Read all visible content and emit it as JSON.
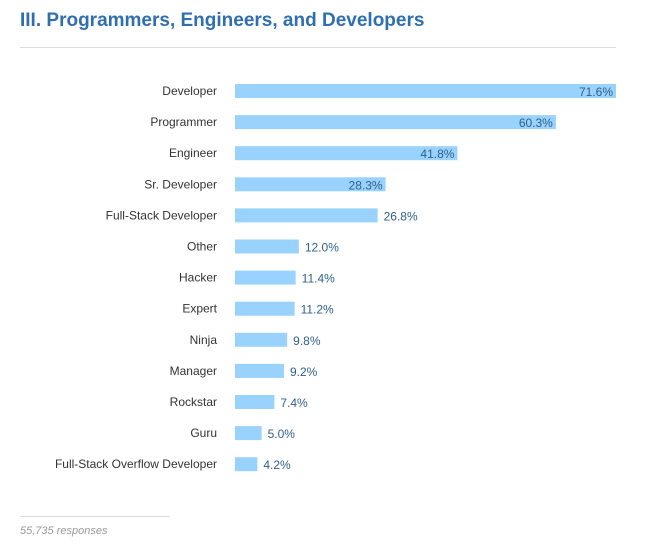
{
  "header": {
    "title": "III. Programmers, Engineers, and Developers"
  },
  "footer": {
    "responses": "55,735 responses"
  },
  "colors": {
    "bar": "#99d3fd",
    "title": "#2f6fb0",
    "value_label": "#2e5f8a"
  },
  "chart_data": {
    "type": "bar",
    "orientation": "horizontal",
    "title": "III. Programmers, Engineers, and Developers",
    "xlabel": "",
    "ylabel": "",
    "categories": [
      "Developer",
      "Programmer",
      "Engineer",
      "Sr. Developer",
      "Full-Stack Developer",
      "Other",
      "Hacker",
      "Expert",
      "Ninja",
      "Manager",
      "Rockstar",
      "Guru",
      "Full-Stack Overflow Developer"
    ],
    "values": [
      71.6,
      60.3,
      41.8,
      28.3,
      26.8,
      12.0,
      11.4,
      11.2,
      9.8,
      9.2,
      7.4,
      5.0,
      4.2
    ],
    "value_labels": [
      "71.6%",
      "60.3%",
      "41.8%",
      "28.3%",
      "26.8%",
      "12.0%",
      "11.4%",
      "11.2%",
      "9.8%",
      "9.2%",
      "7.4%",
      "5.0%",
      "4.2%"
    ],
    "unit": "%",
    "xlim": [
      0,
      71.6
    ],
    "grid": false,
    "legend": "none",
    "note": "55,735 responses"
  }
}
